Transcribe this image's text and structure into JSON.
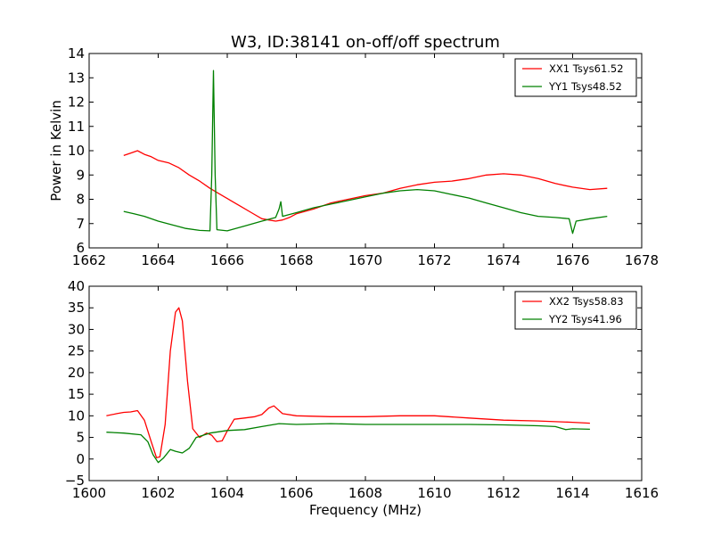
{
  "chart_data": [
    {
      "type": "line",
      "title": "W3, ID:38141 on-off/off spectrum",
      "xlabel": "",
      "ylabel": "Power in Kelvin",
      "xlim": [
        1662,
        1678
      ],
      "ylim": [
        6,
        14
      ],
      "xticks": [
        "1662",
        "1664",
        "1666",
        "1668",
        "1670",
        "1672",
        "1674",
        "1676",
        "1678"
      ],
      "yticks": [
        "6",
        "7",
        "8",
        "9",
        "10",
        "11",
        "12",
        "13",
        "14"
      ],
      "legend_position": "top-right",
      "grid": false,
      "series": [
        {
          "name": "XX1 Tsys61.52",
          "color": "#ff0000",
          "x": [
            1663.0,
            1663.2,
            1663.4,
            1663.6,
            1663.8,
            1664.0,
            1664.3,
            1664.6,
            1664.9,
            1665.2,
            1665.5,
            1665.8,
            1666.1,
            1666.4,
            1666.7,
            1667.0,
            1667.2,
            1667.4,
            1667.6,
            1667.8,
            1668.0,
            1668.5,
            1669.0,
            1669.5,
            1670.0,
            1670.5,
            1671.0,
            1671.5,
            1672.0,
            1672.5,
            1673.0,
            1673.5,
            1674.0,
            1674.5,
            1675.0,
            1675.5,
            1676.0,
            1676.5,
            1677.0
          ],
          "y": [
            9.8,
            9.9,
            10.0,
            9.85,
            9.75,
            9.6,
            9.5,
            9.3,
            9.0,
            8.75,
            8.45,
            8.2,
            7.95,
            7.7,
            7.45,
            7.2,
            7.15,
            7.1,
            7.15,
            7.25,
            7.4,
            7.6,
            7.85,
            8.0,
            8.15,
            8.25,
            8.45,
            8.6,
            8.7,
            8.75,
            8.85,
            9.0,
            9.05,
            9.0,
            8.85,
            8.65,
            8.5,
            8.4,
            8.45
          ]
        },
        {
          "name": "YY1 Tsys48.52",
          "color": "#008000",
          "x": [
            1663.0,
            1663.3,
            1663.6,
            1664.0,
            1664.4,
            1664.8,
            1665.2,
            1665.5,
            1665.55,
            1665.6,
            1665.65,
            1665.7,
            1666.0,
            1666.5,
            1667.0,
            1667.4,
            1667.5,
            1667.55,
            1667.6,
            1668.0,
            1668.5,
            1669.0,
            1669.5,
            1670.0,
            1670.5,
            1671.0,
            1671.5,
            1672.0,
            1672.5,
            1673.0,
            1673.5,
            1674.0,
            1674.5,
            1675.0,
            1675.5,
            1675.9,
            1676.0,
            1676.1,
            1676.5,
            1677.0
          ],
          "y": [
            7.5,
            7.4,
            7.3,
            7.1,
            6.95,
            6.8,
            6.72,
            6.7,
            9.0,
            13.3,
            9.0,
            6.75,
            6.7,
            6.9,
            7.1,
            7.25,
            7.6,
            7.9,
            7.3,
            7.45,
            7.65,
            7.8,
            7.95,
            8.1,
            8.25,
            8.35,
            8.4,
            8.35,
            8.2,
            8.05,
            7.85,
            7.65,
            7.45,
            7.3,
            7.25,
            7.2,
            6.6,
            7.1,
            7.2,
            7.3
          ]
        }
      ]
    },
    {
      "type": "line",
      "title": "",
      "xlabel": "Frequency (MHz)",
      "ylabel": "",
      "xlim": [
        1600,
        1616
      ],
      "ylim": [
        -5,
        40
      ],
      "xticks": [
        "1600",
        "1602",
        "1604",
        "1606",
        "1608",
        "1610",
        "1612",
        "1614",
        "1616"
      ],
      "yticks": [
        "−5",
        "0",
        "5",
        "10",
        "15",
        "20",
        "25",
        "30",
        "35",
        "40"
      ],
      "legend_position": "top-right",
      "grid": false,
      "series": [
        {
          "name": "XX2 Tsys58.83",
          "color": "#ff0000",
          "x": [
            1600.5,
            1600.8,
            1601.0,
            1601.2,
            1601.4,
            1601.6,
            1601.8,
            1601.95,
            1602.05,
            1602.2,
            1602.35,
            1602.5,
            1602.6,
            1602.7,
            1602.85,
            1603.0,
            1603.2,
            1603.4,
            1603.55,
            1603.7,
            1603.85,
            1604.0,
            1604.2,
            1604.5,
            1604.8,
            1605.0,
            1605.2,
            1605.35,
            1605.6,
            1606.0,
            1607.0,
            1608.0,
            1609.0,
            1610.0,
            1611.0,
            1612.0,
            1613.0,
            1614.0,
            1614.5
          ],
          "y": [
            10.0,
            10.5,
            10.8,
            10.9,
            11.2,
            9.0,
            4.0,
            0.3,
            0.5,
            8.0,
            25.0,
            34.0,
            35.0,
            32.0,
            18.0,
            7.0,
            5.0,
            6.0,
            5.5,
            4.0,
            4.2,
            6.5,
            9.2,
            9.5,
            9.8,
            10.3,
            11.8,
            12.3,
            10.5,
            10.0,
            9.8,
            9.8,
            10.0,
            10.0,
            9.5,
            9.0,
            8.8,
            8.5,
            8.3
          ]
        },
        {
          "name": "YY2 Tsys41.96",
          "color": "#008000",
          "x": [
            1600.5,
            1601.0,
            1601.5,
            1601.7,
            1601.85,
            1602.0,
            1602.15,
            1602.35,
            1602.5,
            1602.7,
            1602.9,
            1603.1,
            1603.5,
            1604.0,
            1604.5,
            1605.0,
            1605.5,
            1606.0,
            1607.0,
            1608.0,
            1609.0,
            1610.0,
            1611.0,
            1612.0,
            1613.0,
            1613.5,
            1613.8,
            1614.0,
            1614.5
          ],
          "y": [
            6.2,
            6.0,
            5.6,
            4.0,
            1.0,
            -0.8,
            0.2,
            2.2,
            1.8,
            1.4,
            2.5,
            5.0,
            6.0,
            6.6,
            6.8,
            7.5,
            8.2,
            8.0,
            8.2,
            8.0,
            8.0,
            8.0,
            8.0,
            7.9,
            7.7,
            7.5,
            6.8,
            7.0,
            6.9
          ]
        }
      ]
    }
  ]
}
